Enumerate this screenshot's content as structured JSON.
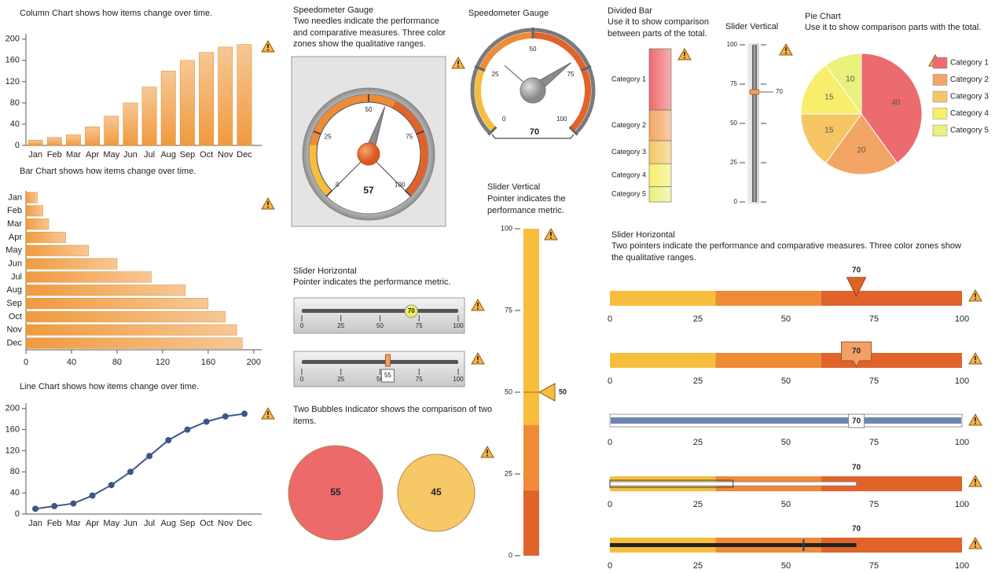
{
  "chart_data": [
    {
      "type": "column",
      "title": "Column Chart shows how items change over time.",
      "categories": [
        "Jan",
        "Feb",
        "Mar",
        "Apr",
        "May",
        "Jun",
        "Jul",
        "Aug",
        "Sep",
        "Oct",
        "Nov",
        "Dec"
      ],
      "values": [
        10,
        15,
        20,
        35,
        55,
        80,
        110,
        140,
        160,
        175,
        185,
        190
      ],
      "color": "#f09a3e",
      "ylim": [
        0,
        210
      ],
      "yticks": [
        0,
        40,
        80,
        120,
        160,
        200
      ]
    },
    {
      "type": "hbar",
      "title": "Bar Chart shows how items change over time.",
      "categories": [
        "Jan",
        "Feb",
        "Mar",
        "Apr",
        "May",
        "Jun",
        "Jul",
        "Aug",
        "Sep",
        "Oct",
        "Nov",
        "Dec"
      ],
      "values": [
        10,
        15,
        20,
        35,
        55,
        80,
        110,
        140,
        160,
        175,
        185,
        190
      ],
      "color": "#f09a3e",
      "xlim": [
        0,
        207
      ],
      "xticks": [
        0,
        40,
        80,
        120,
        160,
        200
      ]
    },
    {
      "type": "line",
      "title": "Line Chart shows how items change over time.",
      "categories": [
        "Jan",
        "Feb",
        "Mar",
        "Apr",
        "May",
        "Jun",
        "Jul",
        "Aug",
        "Sep",
        "Oct",
        "Nov",
        "Dec"
      ],
      "values": [
        10,
        15,
        20,
        35,
        55,
        80,
        110,
        140,
        160,
        175,
        185,
        190
      ],
      "color": "#3d5688",
      "ylim": [
        0,
        210
      ],
      "yticks": [
        0,
        40,
        80,
        120,
        160,
        200
      ]
    },
    {
      "type": "gauge",
      "title": "Speedometer Gauge",
      "subtitle": "Two needles indicate the performance and comparative measures. Three color zones show the qualitative ranges.",
      "value": 57,
      "lim": [
        0,
        100
      ],
      "ticks": [
        0,
        25,
        50,
        75,
        100
      ],
      "zones": [
        [
          0,
          20
        ],
        [
          20,
          60
        ],
        [
          60,
          100
        ]
      ],
      "zone_colors": [
        "#f6be3c",
        "#ef8a36",
        "#e0632a"
      ]
    },
    {
      "type": "speedometer",
      "title": "Speedometer Gauge",
      "value": 70,
      "target": 32,
      "lim": [
        0,
        100
      ],
      "ticks": [
        0,
        25,
        50,
        75,
        100
      ],
      "zones": [
        [
          0,
          25
        ],
        [
          25,
          50
        ],
        [
          50,
          100
        ]
      ],
      "zone_colors": [
        "#f6be3c",
        "#ef8a36",
        "#e0632a"
      ]
    },
    {
      "type": "slider-horizontal",
      "title": "Slider Horizontal",
      "subtitle": "Pointer indicates the performance metric.",
      "values": [
        70,
        55
      ],
      "lim": [
        0,
        100
      ],
      "ticks": [
        0,
        25,
        50,
        75,
        100
      ]
    },
    {
      "type": "bubbles",
      "title": "Two Bubbles Indicator shows the comparison of two items.",
      "values": [
        55,
        45
      ],
      "colors": [
        "#ec6a6a",
        "#f6c966"
      ]
    },
    {
      "type": "slider-vertical",
      "title": "Slider Vertical",
      "subtitle": "Pointer indicates the performance metric.",
      "value": 50,
      "lim": [
        0,
        100
      ],
      "ticks": [
        0,
        25,
        50,
        75,
        100
      ],
      "zones": [
        [
          0,
          20
        ],
        [
          20,
          40
        ],
        [
          40,
          100
        ]
      ],
      "zone_colors": [
        "#e0632a",
        "#ef8a36",
        "#f6be3c"
      ]
    },
    {
      "type": "divided-bar",
      "title": "Divided Bar",
      "subtitle": "Use it to show comparison between parts of the total.",
      "categories": [
        "Category 1",
        "Category 2",
        "Category 3",
        "Category 4",
        "Category 5"
      ],
      "values": [
        40,
        20,
        15,
        15,
        10
      ],
      "colors": [
        "#ec6b6e",
        "#f2a564",
        "#f6c665",
        "#f7ee6c",
        "#e9f07c"
      ]
    },
    {
      "type": "slider-vertical",
      "title": "Slider Vertical",
      "value": 70,
      "lim": [
        0,
        100
      ],
      "ticks": [
        0,
        25,
        50,
        75,
        100
      ]
    },
    {
      "type": "pie",
      "title": "Pie Chart",
      "subtitle": "Use it to show comparison parts with the total.",
      "categories": [
        "Category 1",
        "Category 2",
        "Category 3",
        "Category 4",
        "Category 5"
      ],
      "values": [
        40,
        20,
        15,
        15,
        10
      ],
      "colors": [
        "#ec6b6e",
        "#f2a564",
        "#f6c665",
        "#f7ee6c",
        "#e9f07c"
      ]
    },
    {
      "type": "bullet-sliders",
      "title": "Slider Horizontal",
      "subtitle": "Two pointers indicate the performance and comparative measures. Three color zones show the qualitative ranges.",
      "values": [
        70,
        70,
        70,
        70,
        70
      ],
      "targets": [
        null,
        null,
        null,
        35,
        55
      ],
      "lim": [
        0,
        100
      ],
      "ticks": [
        0,
        25,
        50,
        75,
        100
      ],
      "zones": [
        [
          0,
          30
        ],
        [
          30,
          60
        ],
        [
          60,
          100
        ]
      ],
      "zone_colors": [
        "#f6be3c",
        "#ef8a36",
        "#e0632a"
      ]
    }
  ]
}
